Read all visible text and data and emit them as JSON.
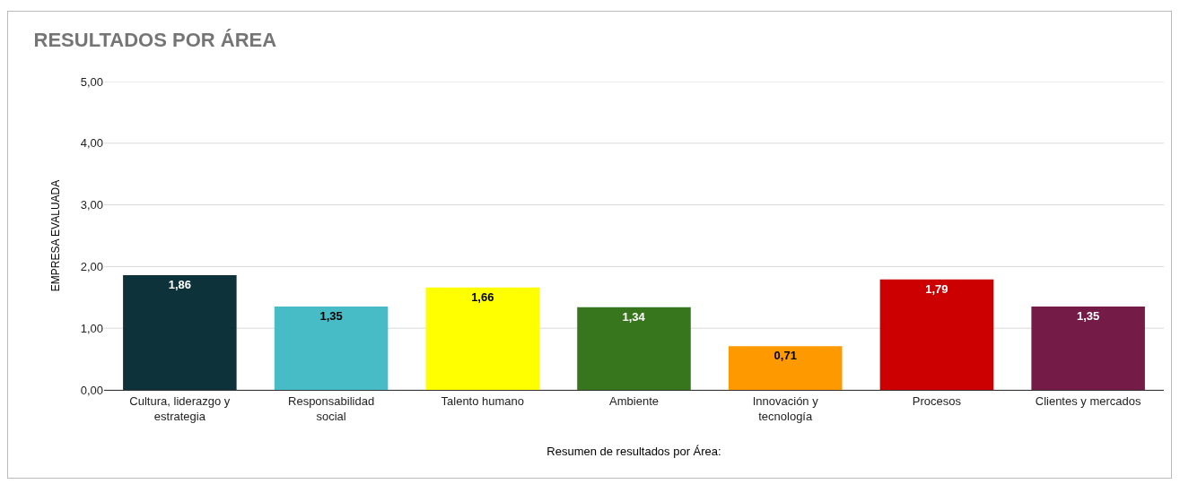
{
  "chart_data": {
    "type": "bar",
    "title": "RESULTADOS POR ÁREA",
    "xlabel": "Resumen de resultados por Área:",
    "ylabel": "EMPRESA EVALUADA",
    "categories": [
      "Cultura, liderazgo y estrategia",
      "Responsabilidad social",
      "Talento humano",
      "Ambiente",
      "Innovación y tecnología",
      "Procesos",
      "Clientes y mercados"
    ],
    "values": [
      1.86,
      1.35,
      1.66,
      1.34,
      0.71,
      1.79,
      1.35
    ],
    "value_labels": [
      "1,86",
      "1,35",
      "1,66",
      "1,34",
      "0,71",
      "1,79",
      "1,35"
    ],
    "colors": [
      "#0e3239",
      "#47bcc6",
      "#ffff00",
      "#38761d",
      "#ff9900",
      "#cc0000",
      "#741b47"
    ],
    "ylim": [
      0,
      5
    ],
    "yticks": [
      {
        "value": 0,
        "label": "0,00"
      },
      {
        "value": 1,
        "label": "1,00"
      },
      {
        "value": 2,
        "label": "2,00"
      },
      {
        "value": 3,
        "label": "3,00"
      },
      {
        "value": 4,
        "label": "4,00"
      },
      {
        "value": 5,
        "label": "5,00"
      }
    ],
    "grid": "y"
  }
}
